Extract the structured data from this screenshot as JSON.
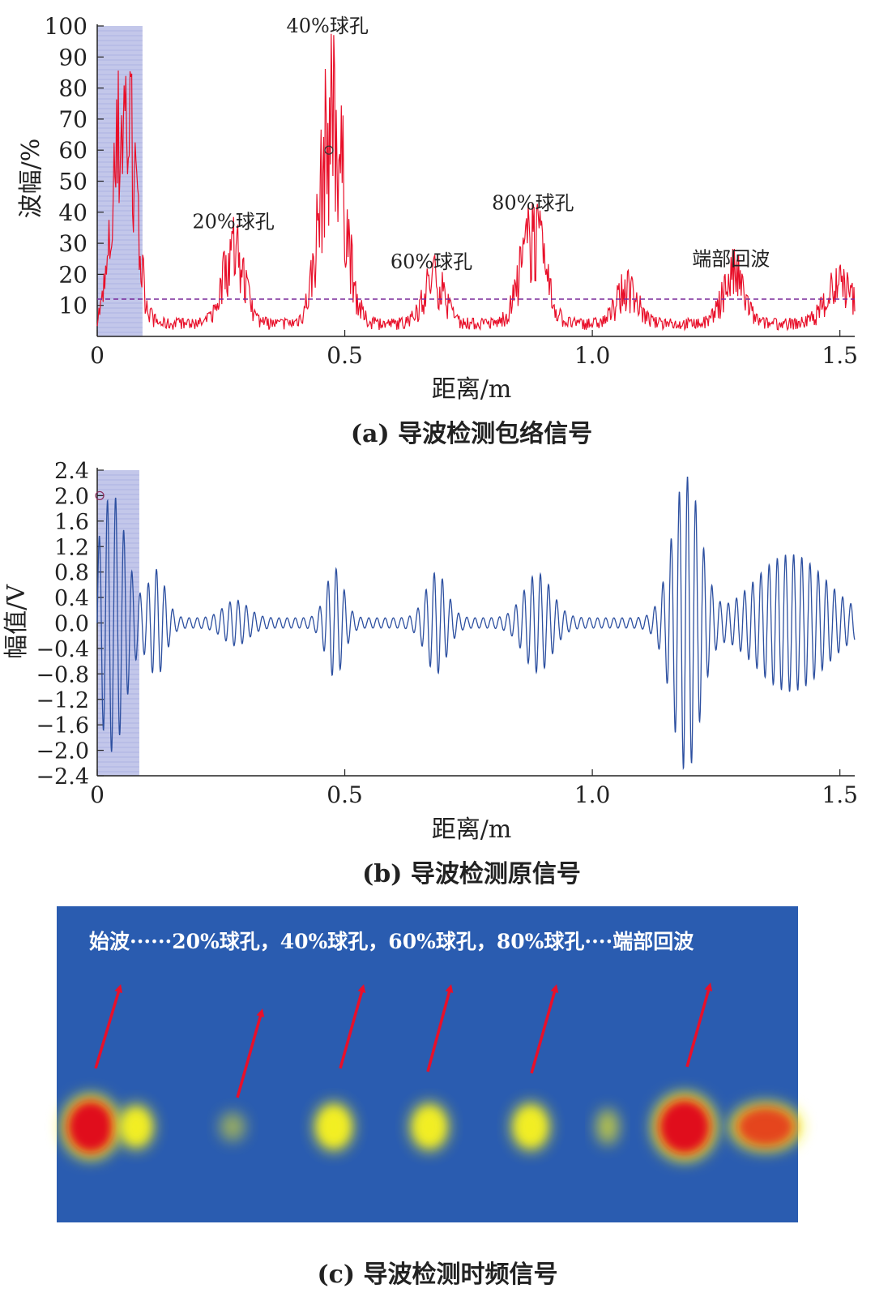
{
  "panels": [
    {
      "caption": "(a) 导波检测包络信号",
      "chart_data": {
        "type": "line",
        "title": "",
        "xlabel": "距离/m",
        "ylabel": "波幅/%",
        "xlim": [
          0,
          1.53
        ],
        "ylim": [
          0,
          100
        ],
        "x_ticks": [
          0,
          0.5,
          1.0,
          1.5
        ],
        "x_tick_labels": [
          "0",
          "0.5",
          "1.0",
          "1.5"
        ],
        "y_ticks": [
          10,
          20,
          30,
          40,
          50,
          60,
          70,
          80,
          90,
          100
        ],
        "y_tick_labels": [
          "10",
          "20",
          "30",
          "40",
          "50",
          "60",
          "70",
          "80",
          "90",
          "100"
        ],
        "threshold": 12,
        "shaded_region": [
          0,
          0.08
        ],
        "marker": [
          0.468,
          60
        ],
        "annotations": [
          {
            "text": "40%球孔",
            "x": 0.465,
            "y": 100
          },
          {
            "text": "20%球孔",
            "x": 0.275,
            "y": 37
          },
          {
            "text": "60%球孔",
            "x": 0.675,
            "y": 24
          },
          {
            "text": "80%球孔",
            "x": 0.88,
            "y": 43
          },
          {
            "text": "端部回波",
            "x": 1.28,
            "y": 25
          }
        ],
        "peaks": [
          {
            "x": 0.055,
            "amp": 100,
            "w": 0.03
          },
          {
            "x": 0.275,
            "amp": 34,
            "w": 0.03
          },
          {
            "x": 0.475,
            "amp": 96,
            "w": 0.035
          },
          {
            "x": 0.68,
            "amp": 21,
            "w": 0.03
          },
          {
            "x": 0.88,
            "amp": 41,
            "w": 0.035
          },
          {
            "x": 1.07,
            "amp": 16,
            "w": 0.03
          },
          {
            "x": 1.285,
            "amp": 23,
            "w": 0.03
          },
          {
            "x": 1.5,
            "amp": 18,
            "w": 0.04
          }
        ],
        "baseline": 6
      }
    },
    {
      "caption": "(b) 导波检测原信号",
      "chart_data": {
        "type": "line",
        "title": "",
        "xlabel": "距离/m",
        "ylabel": "幅值/V",
        "xlim": [
          0,
          1.53
        ],
        "ylim": [
          -2.4,
          2.4
        ],
        "x_ticks": [
          0,
          0.5,
          1.0,
          1.5
        ],
        "x_tick_labels": [
          "0",
          "0.5",
          "1.0",
          "1.5"
        ],
        "y_ticks": [
          2.4,
          2.0,
          1.6,
          1.2,
          0.8,
          0.4,
          0.0,
          -0.4,
          -0.8,
          -1.2,
          -1.6,
          -2.0,
          -2.4
        ],
        "y_tick_labels": [
          "2.4",
          "2.0",
          "1.6",
          "1.2",
          "0.8",
          "0.4",
          "0.0",
          "−0.4",
          "−0.8",
          "−1.2",
          "−1.6",
          "−2.0",
          "−2.4"
        ],
        "shaded_region": [
          0,
          0.085
        ],
        "marker": [
          0.005,
          2.0
        ],
        "wave_period": 0.0165,
        "packets": [
          {
            "x": 0.03,
            "amp": 1.95,
            "w": 0.04
          },
          {
            "x": 0.12,
            "amp": 0.75,
            "w": 0.025
          },
          {
            "x": 0.28,
            "amp": 0.28,
            "w": 0.035
          },
          {
            "x": 0.48,
            "amp": 0.78,
            "w": 0.025
          },
          {
            "x": 0.685,
            "amp": 0.72,
            "w": 0.03
          },
          {
            "x": 0.89,
            "amp": 0.7,
            "w": 0.04
          },
          {
            "x": 1.19,
            "amp": 2.25,
            "w": 0.04
          },
          {
            "x": 1.4,
            "amp": 1.0,
            "w": 0.1
          }
        ],
        "baseline": 0.08
      }
    },
    {
      "caption": "(c) 导波检测时频信号",
      "heatmap_label": "始波······20%球孔，40%球孔，60%球孔，80%球孔····端部回波",
      "chart_data": {
        "type": "heatmap",
        "background_color": "#2a5cb0",
        "blobs": [
          {
            "name": "始波",
            "intensity": 1.0
          },
          {
            "name": "始波拖尾",
            "intensity": 0.55
          },
          {
            "name": "20%球孔",
            "intensity": 0.2
          },
          {
            "name": "40%球孔",
            "intensity": 0.6
          },
          {
            "name": "60%球孔",
            "intensity": 0.55
          },
          {
            "name": "80%球孔",
            "intensity": 0.55
          },
          {
            "name": "80%球孔拖尾",
            "intensity": 0.35
          },
          {
            "name": "端部回波",
            "intensity": 1.0
          },
          {
            "name": "端部回波拖尾",
            "intensity": 0.75
          }
        ]
      }
    }
  ],
  "colors": {
    "envelope": "#e8102a",
    "threshold": "#7a2a9a",
    "signal": "#2c4fa0",
    "shade": "#b8bde6",
    "arrow": "#e8102a",
    "heatmap_bg": "#2a5cb0",
    "blob_red": "#e0101c",
    "blob_yellow": "#f4f020"
  }
}
